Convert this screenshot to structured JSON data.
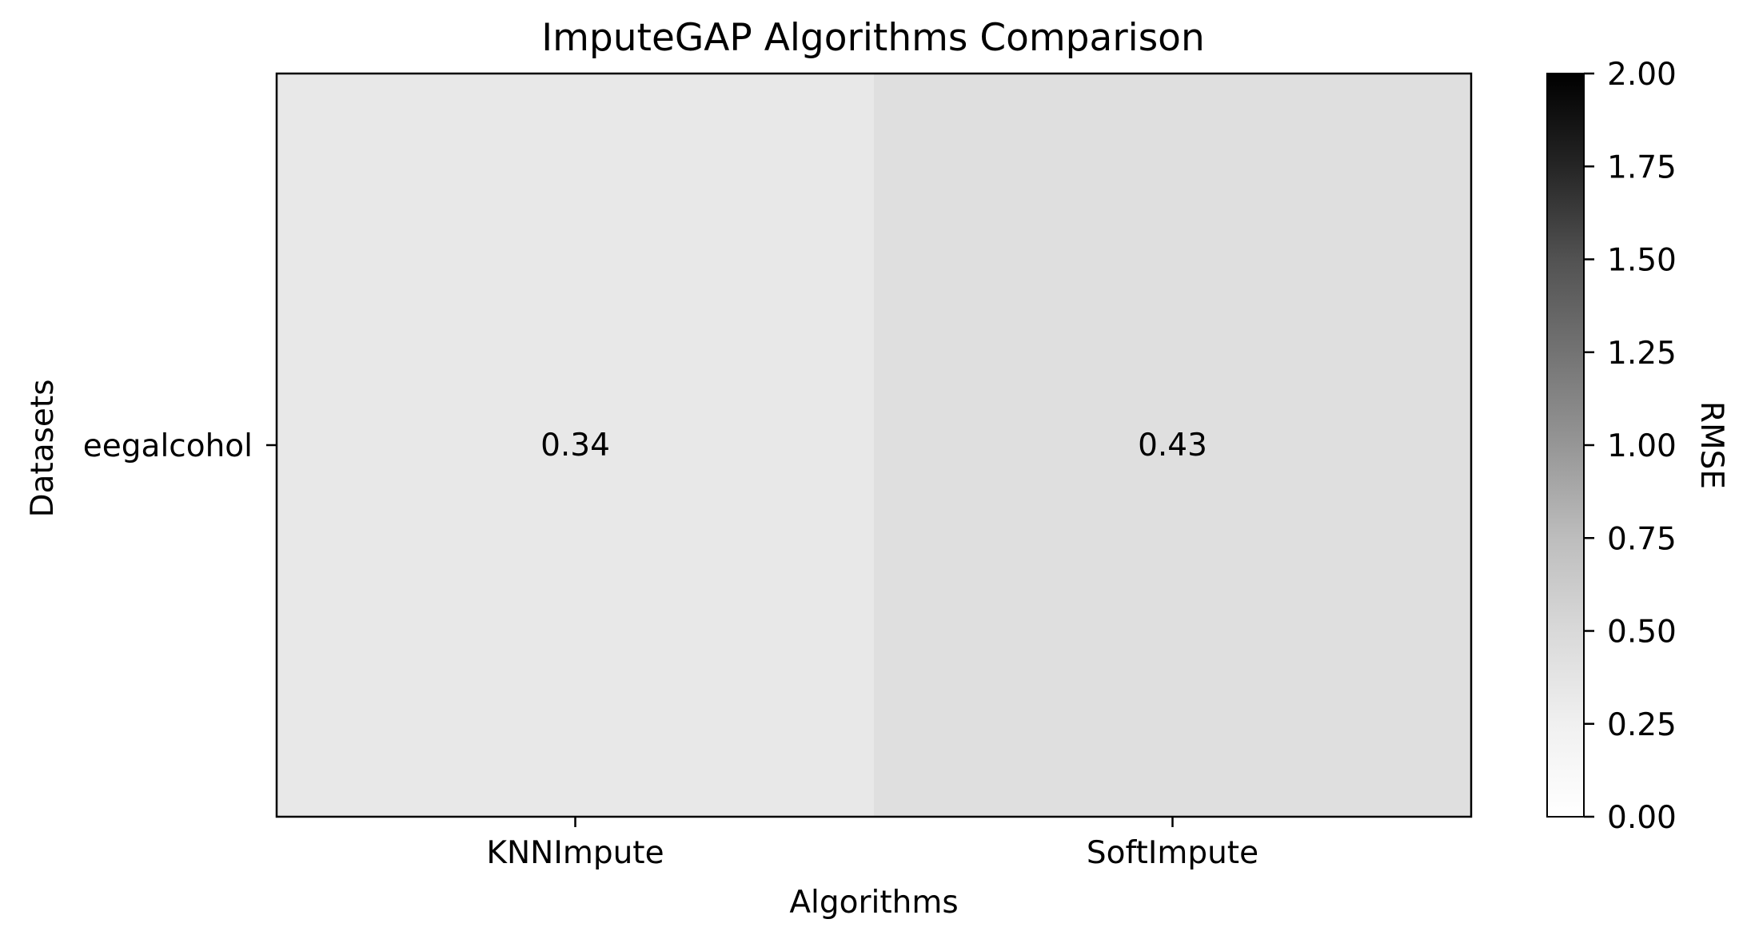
{
  "chart_data": {
    "type": "heatmap",
    "title": "ImputeGAP Algorithms Comparison",
    "xlabel": "Algorithms",
    "ylabel": "Datasets",
    "x_categories": [
      "KNNImpute",
      "SoftImpute"
    ],
    "y_categories": [
      "eegalcohol"
    ],
    "values": [
      [
        0.34,
        0.43
      ]
    ],
    "value_labels": [
      [
        "0.34",
        "0.43"
      ]
    ],
    "colorbar": {
      "label": "RMSE",
      "range": [
        0,
        2
      ],
      "ticks": [
        "0.00",
        "0.25",
        "0.50",
        "0.75",
        "1.00",
        "1.25",
        "1.50",
        "1.75",
        "2.00"
      ],
      "colormap": "Greys",
      "color_low": "#ffffff",
      "color_high": "#000000"
    },
    "grid": false
  }
}
